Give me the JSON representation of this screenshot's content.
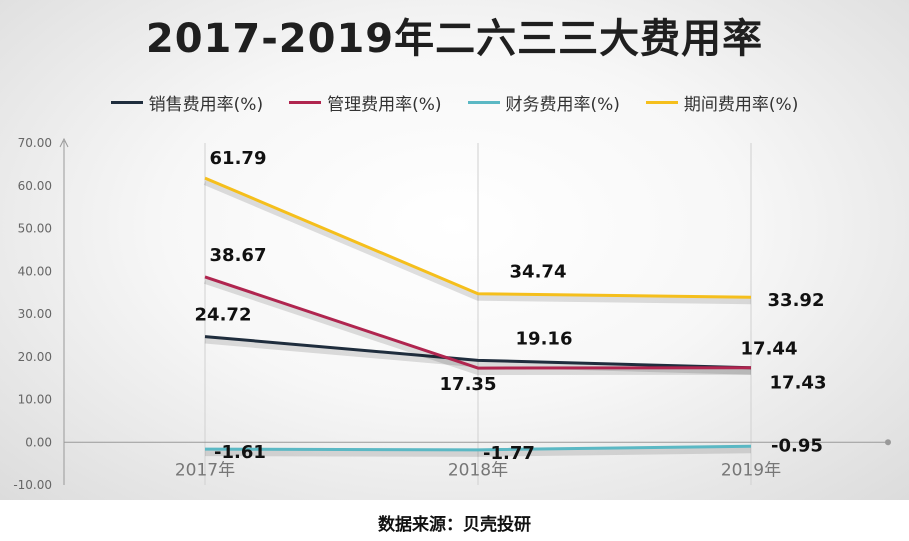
{
  "title": "2017-2019年二六三三大费用率",
  "source": "数据来源：贝壳投研",
  "legend": [
    {
      "name": "销售费用率(%)",
      "color": "#1f2d3d"
    },
    {
      "name": "管理费用率(%)",
      "color": "#b0254f"
    },
    {
      "name": "财务费用率(%)",
      "color": "#5bb8c4"
    },
    {
      "name": "期间费用率(%)",
      "color": "#f5bf1c"
    }
  ],
  "chart_data": {
    "type": "line",
    "title": "2017-2019年二六三三大费用率",
    "categories": [
      "2017年",
      "2018年",
      "2019年"
    ],
    "ylim": [
      -10,
      70
    ],
    "yticks": [
      "-10.00",
      "0.00",
      "10.00",
      "20.00",
      "30.00",
      "40.00",
      "50.00",
      "60.00",
      "70.00"
    ],
    "grid": "vertical",
    "legend_position": "top",
    "series": [
      {
        "name": "销售费用率(%)",
        "color": "#1f2d3d",
        "values": [
          24.72,
          19.16,
          17.44
        ],
        "labels": [
          "24.72",
          "19.16",
          "17.44"
        ]
      },
      {
        "name": "管理费用率(%)",
        "color": "#b0254f",
        "values": [
          38.67,
          17.35,
          17.43
        ],
        "labels": [
          "38.67",
          "17.35",
          "17.43"
        ]
      },
      {
        "name": "财务费用率(%)",
        "color": "#5bb8c4",
        "values": [
          -1.61,
          -1.77,
          -0.95
        ],
        "labels": [
          "-1.61",
          "-1.77",
          "-0.95"
        ]
      },
      {
        "name": "期间费用率(%)",
        "color": "#f5bf1c",
        "values": [
          61.79,
          34.74,
          33.92
        ],
        "labels": [
          "61.79",
          "34.74",
          "33.92"
        ]
      }
    ]
  }
}
